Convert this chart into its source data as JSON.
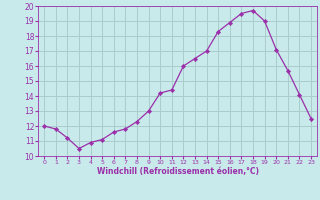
{
  "x": [
    0,
    1,
    2,
    3,
    4,
    5,
    6,
    7,
    8,
    9,
    10,
    11,
    12,
    13,
    14,
    15,
    16,
    17,
    18,
    19,
    20,
    21,
    22,
    23
  ],
  "y": [
    12.0,
    11.8,
    11.2,
    10.5,
    10.9,
    11.1,
    11.6,
    11.8,
    12.3,
    13.0,
    14.2,
    14.4,
    16.0,
    16.5,
    17.0,
    18.3,
    18.9,
    19.5,
    19.7,
    19.0,
    17.1,
    15.7,
    14.1,
    12.5
  ],
  "line_color": "#9B30AA",
  "marker": "D",
  "marker_size": 2.2,
  "bg_color": "#c8eaea",
  "grid_color": "#aacccc",
  "xlabel": "Windchill (Refroidissement éolien,°C)",
  "xlabel_color": "#9B30AA",
  "tick_color": "#9B30AA",
  "xlim": [
    -0.5,
    23.5
  ],
  "ylim": [
    10,
    20
  ],
  "yticks": [
    10,
    11,
    12,
    13,
    14,
    15,
    16,
    17,
    18,
    19,
    20
  ],
  "xticks": [
    0,
    1,
    2,
    3,
    4,
    5,
    6,
    7,
    8,
    9,
    10,
    11,
    12,
    13,
    14,
    15,
    16,
    17,
    18,
    19,
    20,
    21,
    22,
    23
  ]
}
